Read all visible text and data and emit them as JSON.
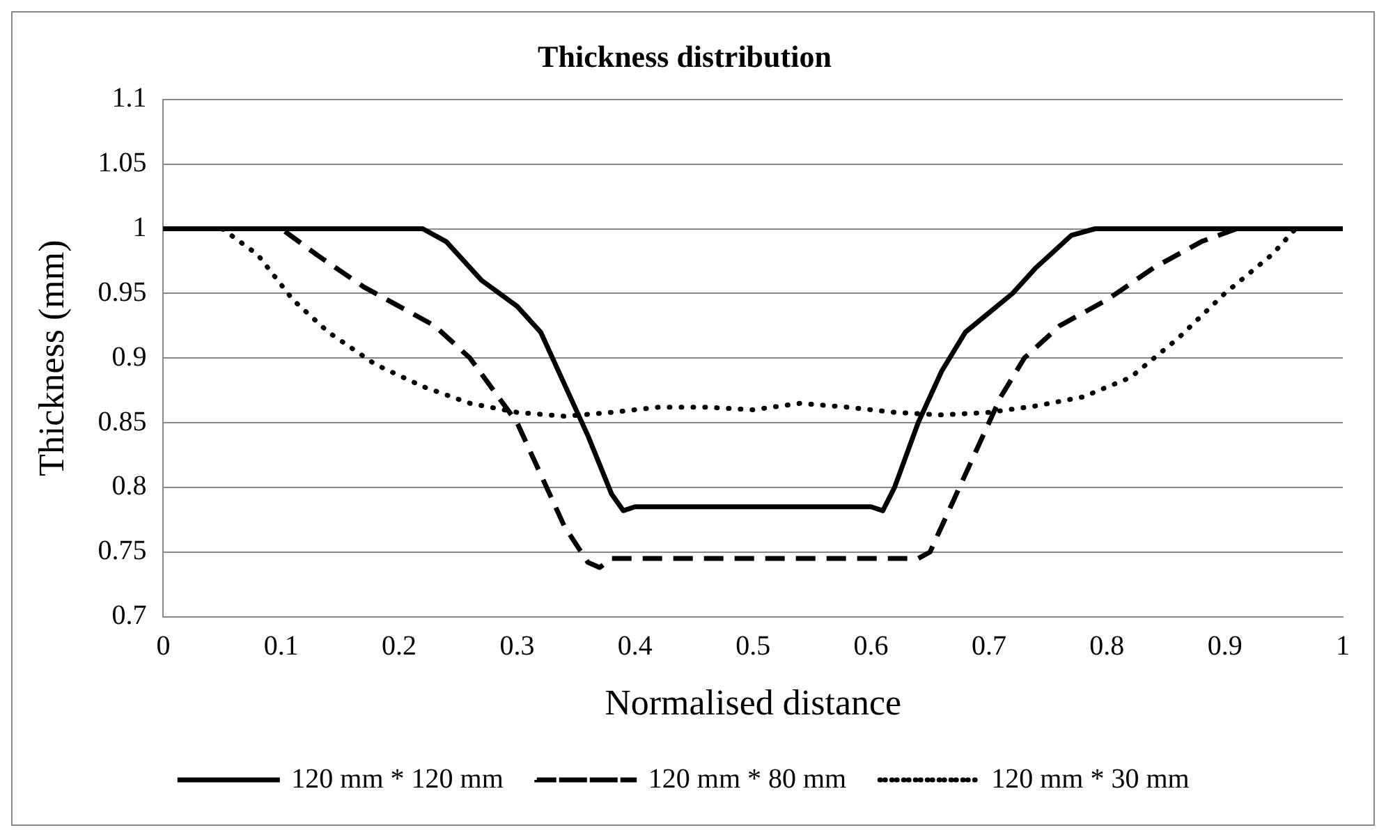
{
  "chart_data": {
    "type": "line",
    "title": "Thickness distribution",
    "xlabel": "Normalised distance",
    "ylabel": "Thickness (mm)",
    "xlim": [
      0,
      1
    ],
    "xticks": [
      0,
      0.1,
      0.2,
      0.3,
      0.4,
      0.5,
      0.6,
      0.7,
      0.8,
      0.9,
      1
    ],
    "ylim": [
      0.7,
      1.1
    ],
    "yticks": [
      0.7,
      0.75,
      0.8,
      0.85,
      0.9,
      0.95,
      1,
      1.05,
      1.1
    ],
    "grid": "y",
    "legend": "bottom",
    "marker": "none",
    "series": [
      {
        "name": "120 mm * 120 mm",
        "color": "#000000",
        "line_style": "solid",
        "x": [
          0,
          0.22,
          0.24,
          0.27,
          0.3,
          0.32,
          0.34,
          0.36,
          0.38,
          0.39,
          0.4,
          0.6,
          0.61,
          0.62,
          0.64,
          0.66,
          0.68,
          0.7,
          0.72,
          0.74,
          0.77,
          0.79,
          1
        ],
        "values": [
          1,
          1,
          0.99,
          0.96,
          0.94,
          0.92,
          0.88,
          0.84,
          0.795,
          0.782,
          0.785,
          0.785,
          0.782,
          0.8,
          0.85,
          0.89,
          0.92,
          0.935,
          0.95,
          0.97,
          0.995,
          1,
          1
        ]
      },
      {
        "name": "120 mm * 80 mm",
        "color": "#000000",
        "line_style": "dashed",
        "x": [
          0,
          0.1,
          0.13,
          0.17,
          0.2,
          0.23,
          0.26,
          0.28,
          0.3,
          0.32,
          0.34,
          0.36,
          0.37,
          0.38,
          0.64,
          0.65,
          0.67,
          0.69,
          0.71,
          0.73,
          0.76,
          0.8,
          0.84,
          0.88,
          0.91,
          1
        ],
        "values": [
          1,
          1,
          0.98,
          0.955,
          0.94,
          0.925,
          0.9,
          0.875,
          0.85,
          0.81,
          0.77,
          0.742,
          0.738,
          0.745,
          0.745,
          0.75,
          0.79,
          0.83,
          0.87,
          0.9,
          0.925,
          0.945,
          0.97,
          0.99,
          1,
          1
        ]
      },
      {
        "name": "120 mm * 30 mm",
        "color": "#000000",
        "line_style": "dotted",
        "x": [
          0,
          0.05,
          0.08,
          0.11,
          0.14,
          0.18,
          0.22,
          0.26,
          0.3,
          0.34,
          0.38,
          0.42,
          0.46,
          0.5,
          0.54,
          0.58,
          0.62,
          0.66,
          0.7,
          0.74,
          0.78,
          0.82,
          0.86,
          0.9,
          0.94,
          0.96,
          1
        ],
        "values": [
          1,
          1,
          0.98,
          0.945,
          0.92,
          0.895,
          0.878,
          0.865,
          0.858,
          0.855,
          0.858,
          0.862,
          0.862,
          0.86,
          0.865,
          0.862,
          0.858,
          0.856,
          0.858,
          0.863,
          0.87,
          0.885,
          0.915,
          0.95,
          0.98,
          1,
          1
        ]
      }
    ]
  }
}
